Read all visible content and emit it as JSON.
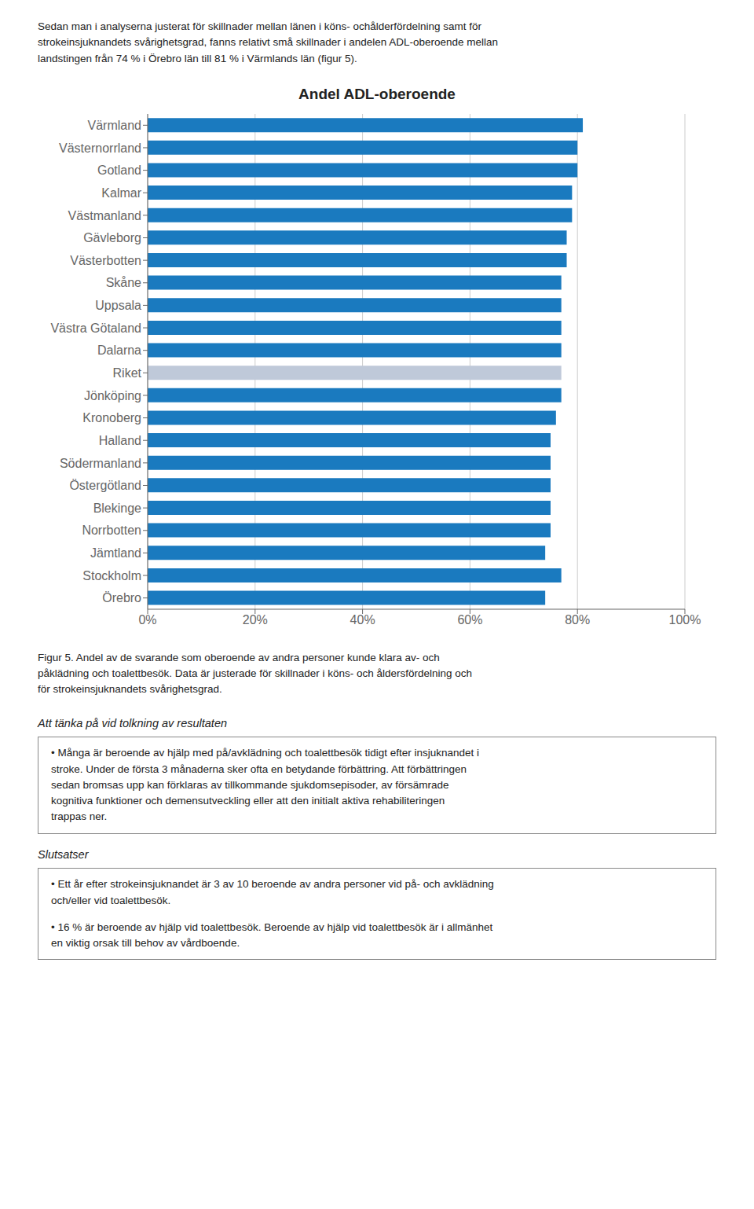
{
  "chart_data": {
    "type": "bar",
    "title": "Andel ADL-oberoende",
    "orientation": "horizontal",
    "categories": [
      "Värmland",
      "Västernorrland",
      "Gotland",
      "Kalmar",
      "Västmanland",
      "Gävleborg",
      "Västerbotten",
      "Skåne",
      "Uppsala",
      "Västra Götaland",
      "Dalarna",
      "Riket",
      "Jönköping",
      "Kronoberg",
      "Halland",
      "Södermanland",
      "Östergötland",
      "Blekinge",
      "Norrbotten",
      "Jämtland",
      "Stockholm",
      "Örebro"
    ],
    "values": [
      81,
      80,
      80,
      79,
      79,
      78,
      78,
      77,
      77,
      77,
      77,
      77,
      77,
      76,
      75,
      75,
      75,
      75,
      75,
      74,
      77,
      74
    ],
    "colors": [
      "#1a7abf",
      "#1a7abf",
      "#1a7abf",
      "#1a7abf",
      "#1a7abf",
      "#1a7abf",
      "#1a7abf",
      "#1a7abf",
      "#1a7abf",
      "#1a7abf",
      "#1a7abf",
      "#bfc9d9",
      "#1a7abf",
      "#1a7abf",
      "#1a7abf",
      "#1a7abf",
      "#1a7abf",
      "#1a7abf",
      "#1a7abf",
      "#1a7abf",
      "#1a7abf",
      "#1a7abf"
    ],
    "xlim": [
      0,
      100
    ],
    "xticks": [
      {
        "value": 0,
        "label": "0%"
      },
      {
        "value": 20,
        "label": "20%"
      },
      {
        "value": 40,
        "label": "40%"
      },
      {
        "value": 60,
        "label": "60%"
      },
      {
        "value": 80,
        "label": "80%"
      },
      {
        "value": 100,
        "label": "100%"
      }
    ],
    "grid": true,
    "annotations": [
      "Sedan man i analyserna justerat för skillnader mellan länen i köns- ochålderfördelning samt för\nstrokeinsjuknandets svårighetsgrad, fanns relativt små skillnader i andelen ADL-oberoende mellan\nlandstingen från 74 % i Örebro län till 81 % i Värmlands län (figur 5).",
      "Figur 5. Andel av de svarande som oberoende av andra personer kunde klara av- och\npåklädning och toalettbesök. Data är justerade för skillnader i köns- och åldersfördelning och\nför strokeinsjuknandets svårighetsgrad.",
      "Att tänka på vid tolkning av resultaten",
      "•  Många är beroende av hjälp med på/avklädning och toalettbesök tidigt efter insjuknandet i\nstroke. Under de första 3 månaderna sker ofta en betydande förbättring. Att förbättringen\nsedan bromsas upp kan förklaras av tillkommande sjukdomsepisoder, av försämrade\nkognitiva funktioner och demensutveckling eller att den initialt aktiva rehabiliteringen\ntrappas ner.",
      "Slutsatser",
      "•  Ett år efter strokeinsjuknandet är 3 av 10 beroende av andra personer vid på- och avklädning\noch/eller vid toalettbesök.",
      "•  16 % är beroende av hjälp vid toalettbesök. Beroende av hjälp vid toalettbesök är i allmänhet\nen viktig orsak till behov av vårdboende."
    ]
  }
}
